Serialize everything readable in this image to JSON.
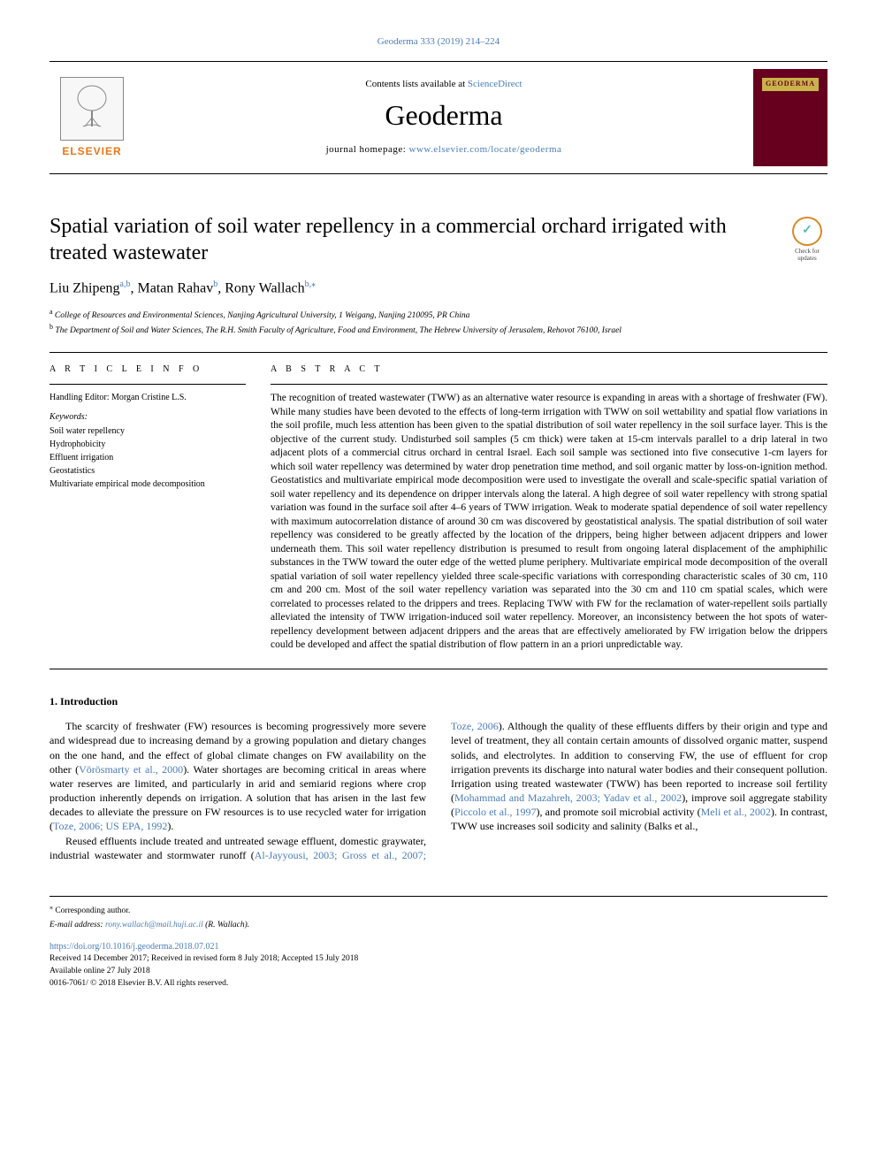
{
  "header": {
    "citation": "Geoderma 333 (2019) 214–224",
    "contents_prefix": "Contents lists available at ",
    "contents_link": "ScienceDirect",
    "journal_name": "Geoderma",
    "homepage_prefix": "journal homepage: ",
    "homepage_link": "www.elsevier.com/locate/geoderma",
    "publisher_logo_name": "ELSEVIER",
    "cover_label": "GEODERMA"
  },
  "badge": {
    "symbol": "✓",
    "text_line1": "Check for",
    "text_line2": "updates"
  },
  "title": "Spatial variation of soil water repellency in a commercial orchard irrigated with treated wastewater",
  "authors_html": "Liu Zhipeng",
  "authors": [
    {
      "name": "Liu Zhipeng",
      "sup": "a,b"
    },
    {
      "name": "Matan Rahav",
      "sup": "b"
    },
    {
      "name": "Rony Wallach",
      "sup": "b,⁎"
    }
  ],
  "affiliations": [
    {
      "sup": "a",
      "text": "College of Resources and Environmental Sciences, Nanjing Agricultural University, 1 Weigang, Nanjing 210095, PR China"
    },
    {
      "sup": "b",
      "text": "The Department of Soil and Water Sciences, The R.H. Smith Faculty of Agriculture, Food and Environment, The Hebrew University of Jerusalem, Rehovot 76100, Israel"
    }
  ],
  "article_info": {
    "heading": "A R T I C L E  I N F O",
    "handling_editor": "Handling Editor: Morgan Cristine L.S.",
    "kw_label": "Keywords:",
    "keywords": [
      "Soil water repellency",
      "Hydrophobicity",
      "Effluent irrigation",
      "Geostatistics",
      "Multivariate empirical mode decomposition"
    ]
  },
  "abstract": {
    "heading": "A B S T R A C T",
    "text": "The recognition of treated wastewater (TWW) as an alternative water resource is expanding in areas with a shortage of freshwater (FW). While many studies have been devoted to the effects of long-term irrigation with TWW on soil wettability and spatial flow variations in the soil profile, much less attention has been given to the spatial distribution of soil water repellency in the soil surface layer. This is the objective of the current study. Undisturbed soil samples (5 cm thick) were taken at 15-cm intervals parallel to a drip lateral in two adjacent plots of a commercial citrus orchard in central Israel. Each soil sample was sectioned into five consecutive 1-cm layers for which soil water repellency was determined by water drop penetration time method, and soil organic matter by loss-on-ignition method. Geostatistics and multivariate empirical mode decomposition were used to investigate the overall and scale-specific spatial variation of soil water repellency and its dependence on dripper intervals along the lateral. A high degree of soil water repellency with strong spatial variation was found in the surface soil after 4–6 years of TWW irrigation. Weak to moderate spatial dependence of soil water repellency with maximum autocorrelation distance of around 30 cm was discovered by geostatistical analysis. The spatial distribution of soil water repellency was considered to be greatly affected by the location of the drippers, being higher between adjacent drippers and lower underneath them. This soil water repellency distribution is presumed to result from ongoing lateral displacement of the amphiphilic substances in the TWW toward the outer edge of the wetted plume periphery. Multivariate empirical mode decomposition of the overall spatial variation of soil water repellency yielded three scale-specific variations with corresponding characteristic scales of 30 cm, 110 cm and 200 cm. Most of the soil water repellency variation was separated into the 30 cm and 110 cm spatial scales, which were correlated to processes related to the drippers and trees. Replacing TWW with FW for the reclamation of water-repellent soils partially alleviated the intensity of TWW irrigation-induced soil water repellency. Moreover, an inconsistency between the hot spots of water-repellency development between adjacent drippers and the areas that are effectively ameliorated by FW irrigation below the drippers could be developed and affect the spatial distribution of flow pattern in an a priori unpredictable way."
  },
  "introduction": {
    "heading": "1. Introduction",
    "col1": "The scarcity of freshwater (FW) resources is becoming progressively more severe and widespread due to increasing demand by a growing population and dietary changes on the one hand, and the effect of global climate changes on FW availability on the other (Vörösmarty et al., 2000). Water shortages are becoming critical in areas where water reserves are limited, and particularly in arid and semiarid regions where crop production inherently depends on irrigation. A solution that has arisen in the last few decades to alleviate the pressure on FW resources is to use recycled water for irrigation (Toze, 2006; US EPA, 1992).",
    "col2": "Reused effluents include treated and untreated sewage effluent, domestic graywater, industrial wastewater and stormwater runoff (Al-Jayyousi, 2003; Gross et al., 2007; Toze, 2006). Although the quality of these effluents differs by their origin and type and level of treatment, they all contain certain amounts of dissolved organic matter, suspend solids, and electrolytes. In addition to conserving FW, the use of effluent for crop irrigation prevents its discharge into natural water bodies and their consequent pollution. Irrigation using treated wastewater (TWW) has been reported to increase soil fertility (Mohammad and Mazahreh, 2003; Yadav et al., 2002), improve soil aggregate stability (Piccolo et al., 1997), and promote soil microbial activity (Meli et al., 2002). In contrast, TWW use increases soil sodicity and salinity (Balks et al.,"
  },
  "footer": {
    "corr_marker": "⁎",
    "corr_text": "Corresponding author.",
    "email_label": "E-mail address:",
    "email": "rony.wallach@mail.huji.ac.il",
    "email_name": "(R. Wallach).",
    "doi": "https://doi.org/10.1016/j.geoderma.2018.07.021",
    "received": "Received 14 December 2017; Received in revised form 8 July 2018; Accepted 15 July 2018",
    "available": "Available online 27 July 2018",
    "copyright": "0016-7061/ © 2018 Elsevier B.V. All rights reserved."
  },
  "colors": {
    "link": "#4a7db8",
    "elsevier_orange": "#e67817",
    "cover_bg": "#67001f",
    "cover_tab": "#c8b24a",
    "badge_ring": "#d48b28",
    "badge_check": "#57b5c8"
  }
}
